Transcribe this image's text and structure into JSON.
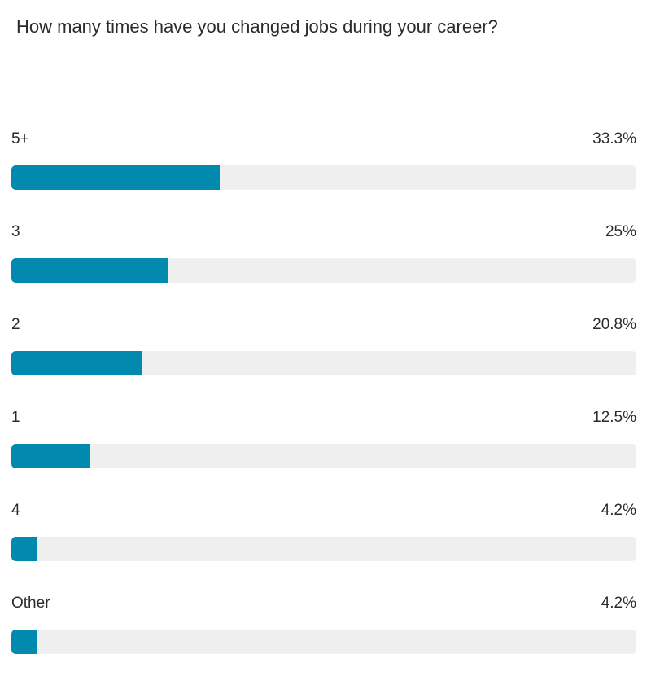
{
  "question": "How many times have you changed jobs during your career?",
  "colors": {
    "bar_fill": "#0289b0",
    "bar_track": "#efefef",
    "text": "#2b2b2b"
  },
  "chart_data": {
    "type": "bar",
    "orientation": "horizontal",
    "title": "How many times have you changed jobs during your career?",
    "categories": [
      "5+",
      "3",
      "2",
      "1",
      "4",
      "Other"
    ],
    "values": [
      33.3,
      25,
      20.8,
      12.5,
      4.2,
      4.2
    ],
    "value_labels": [
      "33.3%",
      "25%",
      "20.8%",
      "12.5%",
      "4.2%",
      "4.2%"
    ],
    "unit": "%",
    "xlim": [
      0,
      100
    ],
    "grid": false,
    "legend": "none"
  }
}
